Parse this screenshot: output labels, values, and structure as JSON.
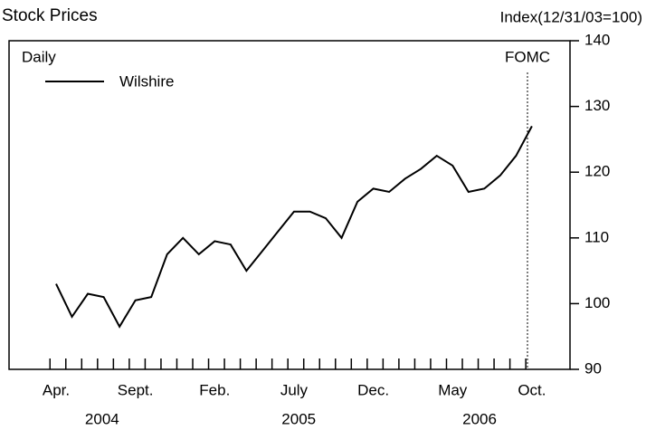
{
  "chart_data": {
    "type": "line",
    "title": "Stock Prices",
    "y_axis_label": "Index(12/31/03=100)",
    "frequency_label": "Daily",
    "event_label": "FOMC",
    "categories": [
      "Apr.",
      null,
      null,
      null,
      null,
      "Sept.",
      null,
      null,
      null,
      null,
      "Feb.",
      null,
      null,
      null,
      null,
      "July",
      null,
      null,
      null,
      null,
      "Dec.",
      null,
      null,
      null,
      null,
      "May",
      null,
      null,
      null,
      null,
      "Oct."
    ],
    "year_labels": [
      "2004",
      "2005",
      "2006"
    ],
    "series": [
      {
        "name": "Wilshire",
        "color": "#000000",
        "values": [
          103,
          98,
          101.5,
          101,
          96.5,
          100.5,
          101,
          107.5,
          110,
          107.5,
          109.5,
          109,
          105,
          108,
          111,
          114,
          114,
          113,
          110,
          115.5,
          117.5,
          117,
          119,
          120.5,
          122.5,
          121,
          117,
          117.5,
          119.5,
          122.5,
          127
        ]
      }
    ],
    "ylim": [
      90,
      140
    ],
    "yticks": [
      90,
      100,
      110,
      120,
      130,
      140
    ],
    "grid": false
  }
}
